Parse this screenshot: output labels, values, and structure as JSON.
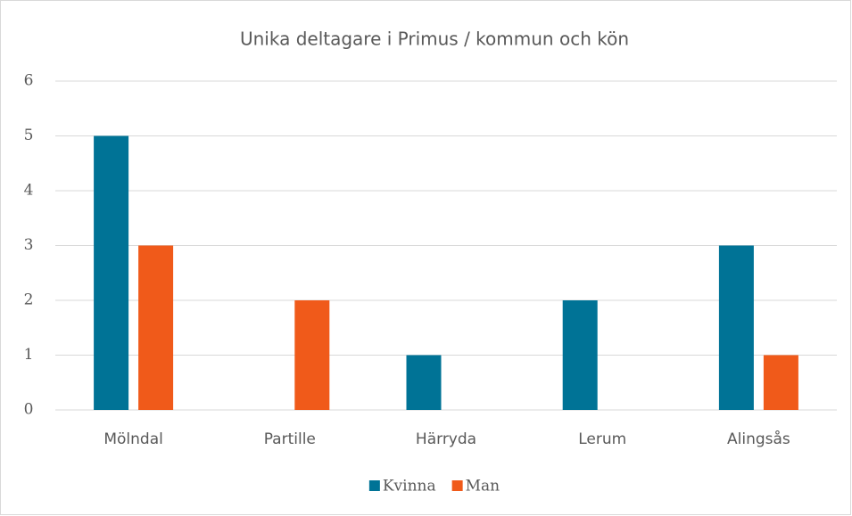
{
  "chart_data": {
    "type": "bar",
    "title": "Unika deltagare i Primus / kommun och kön",
    "categories": [
      "Mölndal",
      "Partille",
      "Härryda",
      "Lerum",
      "Alingsås"
    ],
    "series": [
      {
        "name": "Kvinna",
        "color": "#007396",
        "values": [
          5,
          0,
          1,
          2,
          3
        ]
      },
      {
        "name": "Man",
        "color": "#f05a1a",
        "values": [
          3,
          2,
          0,
          0,
          1
        ]
      }
    ],
    "ylim": [
      0,
      6
    ],
    "yticks": [
      0,
      1,
      2,
      3,
      4,
      5,
      6
    ],
    "grid": true,
    "legend": "bottom"
  }
}
